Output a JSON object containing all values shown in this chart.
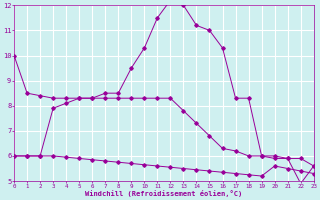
{
  "xlabel": "Windchill (Refroidissement éolien,°C)",
  "background_color": "#cff0f0",
  "grid_color": "#ffffff",
  "line_color": "#990099",
  "hours": [
    0,
    1,
    2,
    3,
    4,
    5,
    6,
    7,
    8,
    9,
    10,
    11,
    12,
    13,
    14,
    15,
    16,
    17,
    18,
    19,
    20,
    21,
    22,
    23
  ],
  "series1": [
    10.0,
    8.5,
    8.4,
    8.3,
    8.3,
    8.3,
    8.3,
    8.5,
    8.5,
    9.5,
    10.3,
    11.5,
    12.2,
    12.0,
    11.2,
    11.0,
    10.3,
    8.3,
    8.3,
    6.0,
    6.0,
    5.9,
    4.9,
    5.6
  ],
  "series2": [
    6.0,
    6.0,
    6.0,
    7.9,
    8.1,
    8.3,
    8.3,
    8.3,
    8.3,
    8.3,
    8.3,
    8.3,
    8.3,
    7.8,
    7.3,
    6.8,
    6.3,
    6.2,
    6.0,
    6.0,
    5.9,
    5.9,
    5.9,
    5.6
  ],
  "series3": [
    6.0,
    6.0,
    6.0,
    6.0,
    5.95,
    5.9,
    5.85,
    5.8,
    5.75,
    5.7,
    5.65,
    5.6,
    5.55,
    5.5,
    5.45,
    5.4,
    5.35,
    5.3,
    5.25,
    5.2,
    5.6,
    5.5,
    5.4,
    5.3
  ],
  "ylim": [
    5,
    12
  ],
  "xlim": [
    0,
    23
  ],
  "yticks": [
    5,
    6,
    7,
    8,
    9,
    10,
    11,
    12
  ],
  "xticks": [
    0,
    1,
    2,
    3,
    4,
    5,
    6,
    7,
    8,
    9,
    10,
    11,
    12,
    13,
    14,
    15,
    16,
    17,
    18,
    19,
    20,
    21,
    22,
    23
  ]
}
